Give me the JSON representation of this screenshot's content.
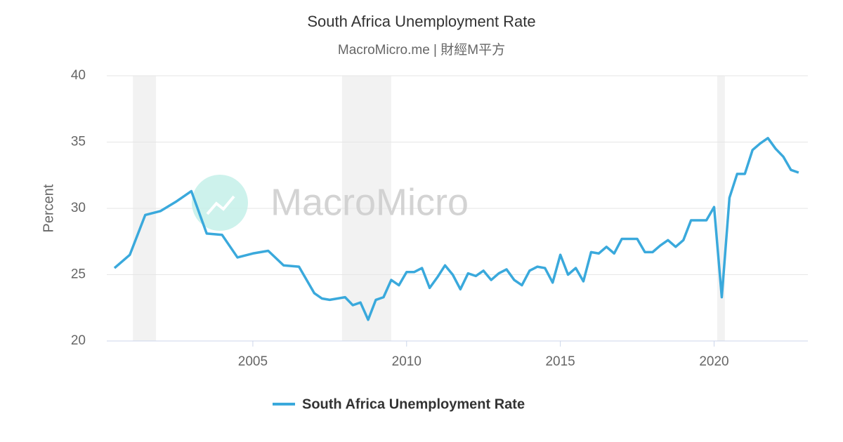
{
  "chart_data": {
    "type": "line",
    "title": "South Africa Unemployment Rate",
    "subtitle": "MacroMicro.me | 財經M平方",
    "watermark": "MacroMicro",
    "y_label": "Percent",
    "x": [
      2000.5,
      2001,
      2001.5,
      2002,
      2002.5,
      2003,
      2003.5,
      2004,
      2004.5,
      2005,
      2005.5,
      2006,
      2006.5,
      2007,
      2007.25,
      2007.5,
      2007.75,
      2008,
      2008.25,
      2008.5,
      2008.75,
      2009,
      2009.25,
      2009.5,
      2009.75,
      2010,
      2010.25,
      2010.5,
      2010.75,
      2011,
      2011.25,
      2011.5,
      2011.75,
      2012,
      2012.25,
      2012.5,
      2012.75,
      2013,
      2013.25,
      2013.5,
      2013.75,
      2014,
      2014.25,
      2014.5,
      2014.75,
      2015,
      2015.25,
      2015.5,
      2015.75,
      2016,
      2016.25,
      2016.5,
      2016.75,
      2017,
      2017.25,
      2017.5,
      2017.75,
      2018,
      2018.25,
      2018.5,
      2018.75,
      2019,
      2019.25,
      2019.5,
      2019.75,
      2020,
      2020.25,
      2020.5,
      2020.75,
      2021,
      2021.25,
      2021.5,
      2021.75,
      2022,
      2022.25,
      2022.5,
      2022.75
    ],
    "series": [
      {
        "name": "South Africa Unemployment Rate",
        "color": "#3aa9dc",
        "values": [
          25.5,
          26.5,
          29.5,
          29.8,
          30.5,
          31.3,
          28.1,
          28.0,
          26.3,
          26.6,
          26.8,
          25.7,
          25.6,
          23.6,
          23.2,
          23.1,
          23.2,
          23.3,
          22.7,
          22.9,
          21.6,
          23.1,
          23.3,
          24.6,
          24.2,
          25.2,
          25.2,
          25.5,
          24.0,
          24.8,
          25.7,
          25.0,
          23.9,
          25.1,
          24.9,
          25.3,
          24.6,
          25.1,
          25.4,
          24.6,
          24.2,
          25.3,
          25.6,
          25.5,
          24.4,
          26.5,
          25.0,
          25.5,
          24.5,
          26.7,
          26.6,
          27.1,
          26.6,
          27.7,
          27.7,
          27.7,
          26.7,
          26.7,
          27.2,
          27.6,
          27.1,
          27.6,
          29.1,
          29.1,
          29.1,
          30.1,
          23.3,
          30.8,
          32.6,
          32.6,
          34.4,
          34.9,
          35.3,
          34.5,
          33.9,
          32.9,
          32.7
        ]
      }
    ],
    "shaded_ranges": [
      [
        2001.1,
        2001.85
      ],
      [
        2007.9,
        2009.5
      ],
      [
        2020.1,
        2020.35
      ]
    ],
    "shade_color": "#f2f2f2",
    "xlim": [
      2000.25,
      2023.05
    ],
    "xticks": [
      2005,
      2010,
      2015,
      2020
    ],
    "ylim": [
      20,
      40
    ],
    "yticks": [
      20,
      25,
      30,
      35,
      40
    ],
    "grid": true
  }
}
